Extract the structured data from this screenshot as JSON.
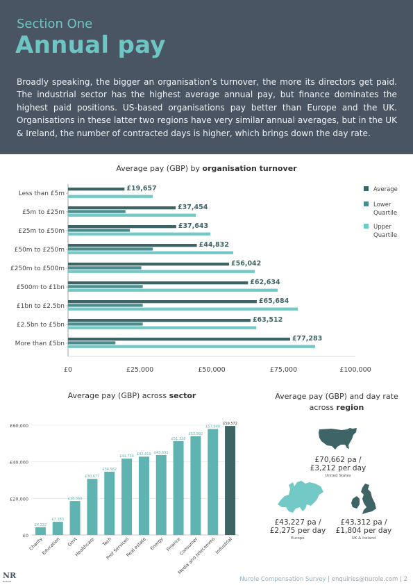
{
  "header": {
    "section": "Section One",
    "title": "Annual pay",
    "intro": "Broadly speaking, the bigger an organisation’s turnover, the more its directors get paid. The industrial sector has the highest average annual pay, but finance dominates the highest paid positions. US-based organisations pay better than Europe and the UK. Organisations in these latter two regions have very similar annual averages, but in the UK & Ireland, the number of contracted days is higher, which brings down the day rate."
  },
  "colors": {
    "average": "#3e6466",
    "lower": "#4a8d8e",
    "upper": "#72c9c6",
    "header_bg": "#4a5563",
    "accent": "#6ec6c4"
  },
  "turnover_chart": {
    "title_plain": "Average pay (GBP) by ",
    "title_bold": "organisation turnover"
  },
  "sector_chart": {
    "title_plain": "Average pay (GBP) across ",
    "title_bold": "sector"
  },
  "region_chart": {
    "title_plain": "Average pay (GBP) and day rate across ",
    "title_bold": "region"
  },
  "chart_data": [
    {
      "type": "bar",
      "orientation": "horizontal",
      "categories": [
        "Less than £5m",
        "£5m to £25m",
        "£25m to £50m",
        "£50m to £250m",
        "£250m to £500m",
        "£500m to £1bn",
        "£1bn to £2.5bn",
        "£2.5bn to £5bn",
        "More than £5bn"
      ],
      "series": [
        {
          "name": "Average",
          "values": [
            19657,
            37454,
            37643,
            44832,
            56042,
            62634,
            65684,
            63512,
            77283
          ],
          "labels": [
            "£19,657",
            "£37,454",
            "£37,643",
            "£44,832",
            "£56,042",
            "£62,634",
            "£65,684",
            "£63,512",
            "£77,283"
          ]
        },
        {
          "name": "Lower Quartile",
          "values": [
            0,
            20000,
            21500,
            29500,
            25500,
            26000,
            26000,
            26000,
            16500
          ]
        },
        {
          "name": "Upper Quartile",
          "values": [
            29500,
            44500,
            49500,
            57500,
            65000,
            73000,
            80000,
            65500,
            86000
          ]
        }
      ],
      "legend": [
        "Average",
        "Lower Quartile",
        "Upper Quartile"
      ],
      "legend_position": "right",
      "xlim": [
        0,
        100000
      ],
      "xticks": [
        "£0",
        "£25,000",
        "£50,000",
        "£75,000",
        "£100,000"
      ]
    },
    {
      "type": "bar",
      "categories": [
        "Charity",
        "Education",
        "Govt",
        "Healthcare",
        "Tech",
        "Prof Services",
        "Real estate",
        "Energy",
        "Finance",
        "Consumer",
        "Media and telecomms",
        "Industrial"
      ],
      "values": [
        4222,
        7183,
        18560,
        30677,
        34562,
        41734,
        42819,
        43691,
        51328,
        53992,
        57940,
        59572
      ],
      "labels": [
        "£4,222",
        "£7,183",
        "£18,560",
        "£30,677",
        "£34,562",
        "£41,734",
        "£42,819",
        "£43,691",
        "£51,328",
        "£53,992",
        "£57,940",
        "£59,572"
      ],
      "ylim": [
        0,
        60000
      ],
      "yticks": [
        "£0",
        "£20,000",
        "£40,000",
        "£60,000"
      ]
    }
  ],
  "regions": [
    {
      "pa": "£70,662",
      "pa_unit": "pa /",
      "day": "£3,212",
      "day_unit": "per day",
      "name": "United States"
    },
    {
      "pa": "£43,227",
      "pa_unit": "pa /",
      "day": "£2,275",
      "day_unit": "per day",
      "name": "Europe"
    },
    {
      "pa": "£43,312",
      "pa_unit": "pa /",
      "day": "£1,804",
      "day_unit": "per day",
      "name": "UK & Ireland"
    }
  ],
  "footer": {
    "logo": "NR",
    "logo_sub": "NUROLE",
    "brand": "Nurole Compensation Survey",
    "sep1": "|",
    "email": "enquiries@nurole.com",
    "sep2": "|",
    "page": "2"
  }
}
